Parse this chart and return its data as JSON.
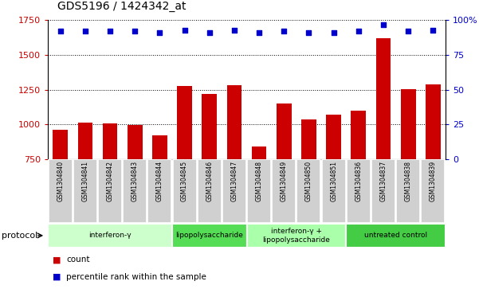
{
  "title": "GDS5196 / 1424342_at",
  "samples": [
    "GSM1304840",
    "GSM1304841",
    "GSM1304842",
    "GSM1304843",
    "GSM1304844",
    "GSM1304845",
    "GSM1304846",
    "GSM1304847",
    "GSM1304848",
    "GSM1304849",
    "GSM1304850",
    "GSM1304851",
    "GSM1304836",
    "GSM1304837",
    "GSM1304838",
    "GSM1304839"
  ],
  "counts": [
    960,
    1010,
    1005,
    995,
    920,
    1275,
    1220,
    1280,
    840,
    1150,
    1035,
    1070,
    1100,
    1620,
    1255,
    1285
  ],
  "percentile": [
    92,
    92,
    92,
    92,
    91,
    93,
    91,
    93,
    91,
    92,
    91,
    91,
    92,
    97,
    92,
    93
  ],
  "bar_color": "#cc0000",
  "dot_color": "#0000cc",
  "left_ylim": [
    750,
    1750
  ],
  "left_yticks": [
    750,
    1000,
    1250,
    1500,
    1750
  ],
  "right_ylim": [
    0,
    100
  ],
  "right_yticks": [
    0,
    25,
    50,
    75,
    100
  ],
  "right_yticklabels": [
    "0",
    "25",
    "50",
    "75",
    "100%"
  ],
  "protocols": [
    {
      "label": "interferon-γ",
      "start": 0,
      "end": 5,
      "color": "#ccffcc"
    },
    {
      "label": "lipopolysaccharide",
      "start": 5,
      "end": 8,
      "color": "#55dd55"
    },
    {
      "label": "interferon-γ +\nlipopolysaccharide",
      "start": 8,
      "end": 12,
      "color": "#aaffaa"
    },
    {
      "label": "untreated control",
      "start": 12,
      "end": 16,
      "color": "#44cc44"
    }
  ],
  "sample_bg": "#d0d0d0",
  "sample_sep": "#ffffff",
  "protocol_label": "protocol",
  "legend_count": "count",
  "legend_pct": "percentile rank within the sample"
}
